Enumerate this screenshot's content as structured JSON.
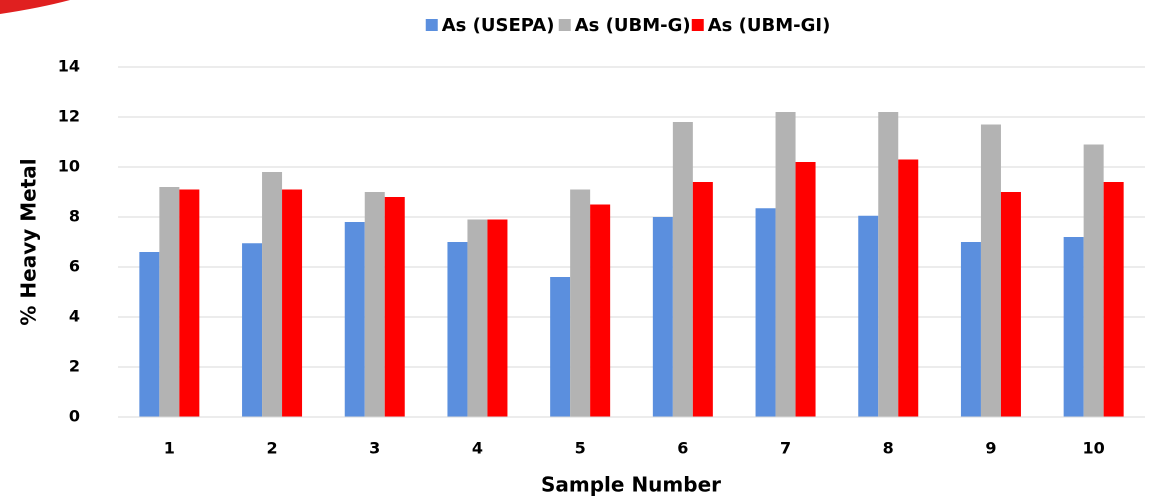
{
  "chart_data": {
    "type": "bar",
    "x_label": "Sample Number",
    "y_label": "% Heavy Metal",
    "categories": [
      "1",
      "2",
      "3",
      "4",
      "5",
      "6",
      "7",
      "8",
      "9",
      "10"
    ],
    "series": [
      {
        "name": "As (USEPA)",
        "color": "#5b8fde",
        "values": [
          6.6,
          6.95,
          7.8,
          7.0,
          5.6,
          8.0,
          8.35,
          8.05,
          7.0,
          7.2
        ]
      },
      {
        "name": "As (UBM-G)",
        "color": "#b3b3b3",
        "values": [
          9.2,
          9.8,
          9.0,
          7.9,
          9.1,
          11.8,
          12.2,
          12.2,
          11.7,
          10.9
        ]
      },
      {
        "name": "As (UBM-GI)",
        "color": "#ff0000",
        "values": [
          9.1,
          9.1,
          8.8,
          7.9,
          8.5,
          9.4,
          10.2,
          10.3,
          9.0,
          9.4
        ]
      }
    ],
    "ylim": [
      0,
      14
    ],
    "yticks": [
      0,
      2,
      4,
      6,
      8,
      10,
      12,
      14
    ],
    "grid": true,
    "legend": "top"
  }
}
